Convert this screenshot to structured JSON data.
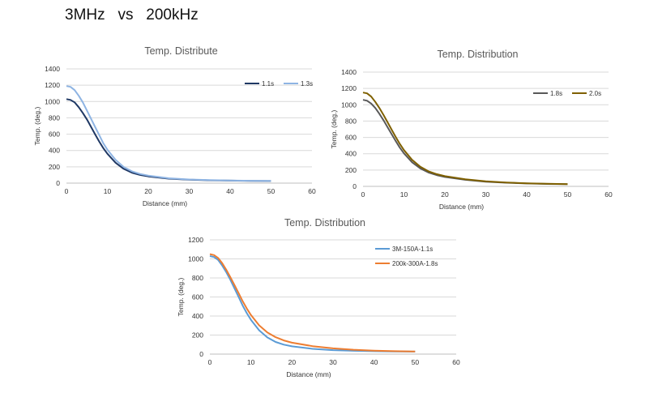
{
  "page": {
    "title": "3MHz   vs   200kHz"
  },
  "chart_data": [
    {
      "type": "line",
      "title": "Temp. Distribute",
      "xlabel": "Distance (mm)",
      "ylabel": "Temp. (deg.)",
      "xlim": [
        0,
        60
      ],
      "ylim": [
        0,
        1400
      ],
      "xticks": [
        0,
        10,
        20,
        30,
        40,
        50,
        60
      ],
      "yticks": [
        0,
        200,
        400,
        600,
        800,
        1000,
        1200,
        1400
      ],
      "grid": "horizontal",
      "legend": "top-right",
      "series": [
        {
          "name": "1.1s",
          "color": "#1f3864",
          "x": [
            0,
            1,
            2,
            3,
            4,
            5,
            6,
            7,
            8,
            9,
            10,
            12,
            14,
            16,
            18,
            20,
            25,
            30,
            35,
            40,
            45,
            50
          ],
          "y": [
            1030,
            1020,
            990,
            930,
            860,
            780,
            690,
            600,
            510,
            430,
            360,
            250,
            175,
            128,
            100,
            82,
            55,
            42,
            35,
            31,
            28,
            26
          ]
        },
        {
          "name": "1.3s",
          "color": "#8eb4e3",
          "x": [
            0,
            1,
            2,
            3,
            4,
            5,
            6,
            7,
            8,
            9,
            10,
            12,
            14,
            16,
            18,
            20,
            25,
            30,
            35,
            40,
            45,
            50
          ],
          "y": [
            1190,
            1180,
            1140,
            1070,
            990,
            890,
            790,
            690,
            590,
            490,
            410,
            285,
            198,
            145,
            112,
            92,
            60,
            45,
            37,
            32,
            29,
            27
          ]
        }
      ]
    },
    {
      "type": "line",
      "title": "Temp. Distribution",
      "xlabel": "Distance (mm)",
      "ylabel": "Temp. (deg.)",
      "xlim": [
        0,
        60
      ],
      "ylim": [
        0,
        1400
      ],
      "xticks": [
        0,
        10,
        20,
        30,
        40,
        50,
        60
      ],
      "yticks": [
        0,
        200,
        400,
        600,
        800,
        1000,
        1200,
        1400
      ],
      "grid": "horizontal",
      "legend": "top-right",
      "series": [
        {
          "name": "1.8s",
          "color": "#595959",
          "x": [
            0,
            1,
            2,
            3,
            4,
            5,
            6,
            7,
            8,
            9,
            10,
            12,
            14,
            16,
            18,
            20,
            25,
            30,
            35,
            40,
            45,
            50
          ],
          "y": [
            1060,
            1050,
            1015,
            960,
            890,
            810,
            725,
            640,
            555,
            475,
            405,
            295,
            220,
            170,
            138,
            115,
            80,
            58,
            45,
            36,
            30,
            27
          ]
        },
        {
          "name": "2.0s",
          "color": "#7f6000",
          "x": [
            0,
            1,
            2,
            3,
            4,
            5,
            6,
            7,
            8,
            9,
            10,
            12,
            14,
            16,
            18,
            20,
            25,
            30,
            35,
            40,
            45,
            50
          ],
          "y": [
            1150,
            1140,
            1100,
            1035,
            960,
            875,
            785,
            695,
            605,
            520,
            445,
            325,
            240,
            185,
            150,
            125,
            86,
            62,
            48,
            38,
            32,
            28
          ]
        }
      ]
    },
    {
      "type": "line",
      "title": "Temp. Distribution",
      "xlabel": "Distance (mm)",
      "ylabel": "Temp. (deg.)",
      "xlim": [
        0,
        60
      ],
      "ylim": [
        0,
        1200
      ],
      "xticks": [
        0,
        10,
        20,
        30,
        40,
        50,
        60
      ],
      "yticks": [
        0,
        200,
        400,
        600,
        800,
        1000,
        1200
      ],
      "grid": "horizontal",
      "legend": "top-right",
      "series": [
        {
          "name": "3M-150A-1.1s",
          "color": "#5b9bd5",
          "x": [
            0,
            1,
            2,
            3,
            4,
            5,
            6,
            7,
            8,
            9,
            10,
            12,
            14,
            16,
            18,
            20,
            25,
            30,
            35,
            40,
            45,
            50
          ],
          "y": [
            1030,
            1020,
            990,
            930,
            860,
            780,
            690,
            600,
            510,
            430,
            360,
            250,
            175,
            128,
            100,
            82,
            55,
            42,
            35,
            31,
            28,
            26
          ]
        },
        {
          "name": "200k-300A-1.8s",
          "color": "#ed7d31",
          "x": [
            0,
            1,
            2,
            3,
            4,
            5,
            6,
            7,
            8,
            9,
            10,
            12,
            14,
            16,
            18,
            20,
            25,
            30,
            35,
            40,
            45,
            50
          ],
          "y": [
            1050,
            1040,
            1010,
            955,
            885,
            808,
            725,
            640,
            555,
            478,
            410,
            302,
            228,
            178,
            144,
            120,
            83,
            60,
            46,
            37,
            31,
            27
          ]
        }
      ]
    }
  ]
}
